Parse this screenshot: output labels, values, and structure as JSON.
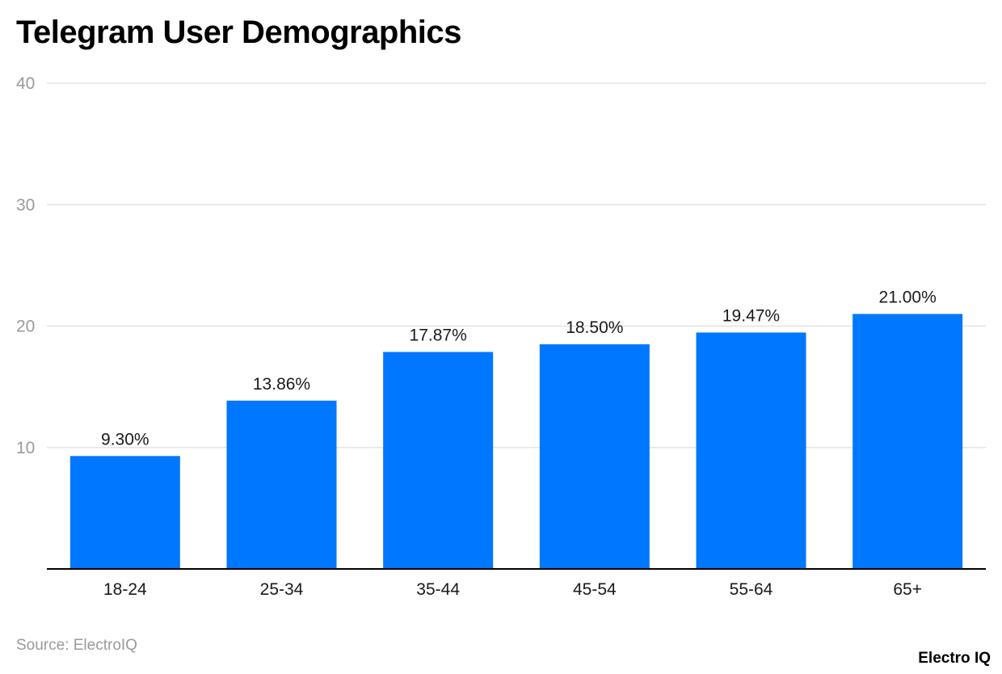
{
  "header": {
    "title": "Telegram User Demographics"
  },
  "footer": {
    "source": "Source: ElectroIQ",
    "brand": "Electro IQ"
  },
  "colors": {
    "bar": "#0077ff",
    "grid": "#e3e3e3",
    "axis": "#000000",
    "tick_label": "#9a9a9a",
    "category_label": "#1a1a1a",
    "data_label": "#1a1a1a"
  },
  "chart_data": {
    "type": "bar",
    "title": "Telegram User Demographics",
    "xlabel": "",
    "ylabel": "",
    "categories": [
      "18-24",
      "25-34",
      "35-44",
      "45-54",
      "55-64",
      "65+"
    ],
    "values": [
      9.3,
      13.86,
      17.87,
      18.5,
      19.47,
      21.0
    ],
    "data_labels": [
      "9.30%",
      "13.86%",
      "17.87%",
      "18.50%",
      "19.47%",
      "21.00%"
    ],
    "ylim": [
      0,
      40
    ],
    "yticks": [
      10,
      20,
      30,
      40
    ],
    "grid": true,
    "legend": "none"
  }
}
